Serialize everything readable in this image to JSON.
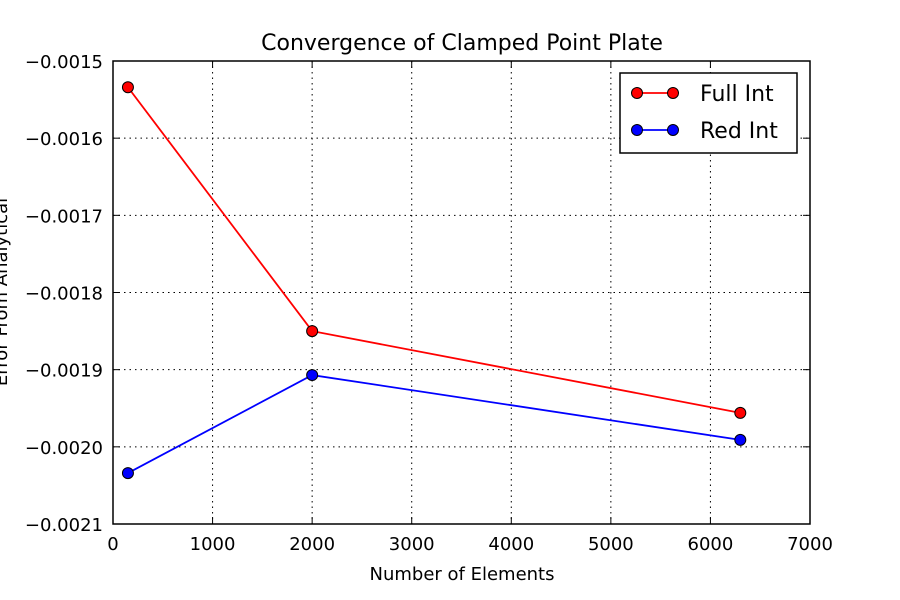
{
  "chart_data": {
    "type": "line",
    "title": "Convergence of Clamped Point Plate",
    "xlabel": "Number of Elements",
    "ylabel": "Error From Analytical",
    "xlim": [
      0,
      7000
    ],
    "ylim": [
      -0.0021,
      -0.0015
    ],
    "xticks": [
      0,
      1000,
      2000,
      3000,
      4000,
      5000,
      6000,
      7000
    ],
    "xtick_labels": [
      "0",
      "1000",
      "2000",
      "3000",
      "4000",
      "5000",
      "6000",
      "7000"
    ],
    "yticks": [
      -0.0015,
      -0.0016,
      -0.0017,
      -0.0018,
      -0.0019,
      -0.002,
      -0.0021
    ],
    "ytick_labels": [
      "−0.0015",
      "−0.0016",
      "−0.0017",
      "−0.0018",
      "−0.0019",
      "−0.0020",
      "−0.0021"
    ],
    "grid": true,
    "legend_position": "top-right",
    "series": [
      {
        "name": "Full Int",
        "color": "#ff0000",
        "x": [
          150,
          2000,
          6300
        ],
        "y": [
          -0.001534,
          -0.00185,
          -0.001956
        ]
      },
      {
        "name": "Red Int",
        "color": "#0000ff",
        "x": [
          150,
          2000,
          6300
        ],
        "y": [
          -0.002034,
          -0.001907,
          -0.001991
        ]
      }
    ]
  }
}
